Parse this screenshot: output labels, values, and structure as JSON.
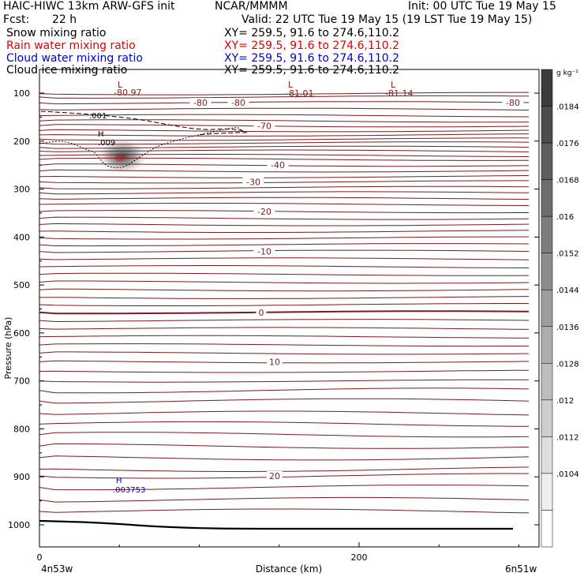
{
  "header": {
    "title_left": "HAIC-HIWC 13km ARW-GFS init",
    "org": "NCAR/MMMM",
    "init": "Init: 00 UTC Tue 19 May 15",
    "fcst_label": "Fcst:",
    "fcst_value": "22 h",
    "valid": "Valid: 22 UTC Tue 19 May 15 (19 LST Tue 19 May 15)"
  },
  "fields": [
    {
      "name": "Snow mixing ratio",
      "xy": "XY= 259.5, 91.6 to 274.6,110.2",
      "color": "#000000"
    },
    {
      "name": "Rain water mixing ratio",
      "xy": "XY= 259.5, 91.6 to 274.6,110.2",
      "color": "#e00000"
    },
    {
      "name": "Cloud water mixing ratio",
      "xy": "XY= 259.5, 91.6 to 274.6,110.2",
      "color": "#0000d0"
    },
    {
      "name": "Cloud ice mixing ratio",
      "xy": "XY= 259.5, 91.6 to 274.6,110.2",
      "color": "#000000"
    }
  ],
  "chart_data": {
    "type": "contour",
    "xlabel": "Distance (km)",
    "ylabel": "Pressure (hPa)",
    "x_ticks": [
      0,
      200
    ],
    "x_endpoints": {
      "left": "4n53w",
      "right": "6n51w"
    },
    "y_ticks": [
      100,
      200,
      300,
      400,
      500,
      600,
      700,
      800,
      900,
      1000
    ],
    "ylim": [
      1050,
      50
    ],
    "colorbar": {
      "unit": "g kg⁻¹",
      "ticks": [
        ".0184",
        ".0176",
        ".0168",
        ".016",
        ".0152",
        ".0144",
        ".0136",
        ".0128",
        ".012",
        ".0112",
        ".0104"
      ]
    },
    "temperature_contours": [
      {
        "label": "-80",
        "pressure": 120
      },
      {
        "label": "-70",
        "pressure": 168
      },
      {
        "label": "-40",
        "pressure": 250
      },
      {
        "label": "-30",
        "pressure": 285
      },
      {
        "label": "-20",
        "pressure": 347
      },
      {
        "label": "-10",
        "pressure": 430
      },
      {
        "label": "0",
        "pressure": 557
      },
      {
        "label": "10",
        "pressure": 660
      },
      {
        "label": "20",
        "pressure": 898
      }
    ],
    "extrema": [
      {
        "type": "L",
        "value": "-80.97",
        "color": "#8b1a1a"
      },
      {
        "type": "L",
        "value": "-81.01",
        "color": "#8b1a1a"
      },
      {
        "type": "L",
        "value": "-81.14",
        "color": "#8b1a1a"
      },
      {
        "type": "H",
        "value": ".009",
        "color": "#000000"
      },
      {
        "type": "H",
        "value": ".003753",
        "color": "#0000d0"
      }
    ],
    "snow_contour_label": ".001"
  }
}
